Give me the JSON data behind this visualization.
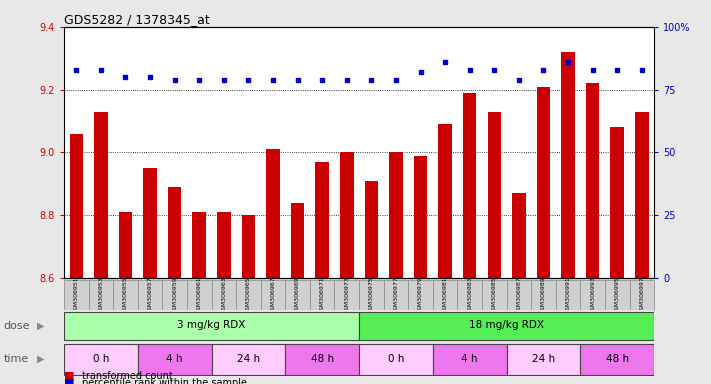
{
  "title": "GDS5282 / 1378345_at",
  "samples": [
    "GSM306951",
    "GSM306953",
    "GSM306955",
    "GSM306957",
    "GSM306959",
    "GSM306961",
    "GSM306963",
    "GSM306965",
    "GSM306967",
    "GSM306969",
    "GSM306971",
    "GSM306973",
    "GSM306975",
    "GSM306977",
    "GSM306979",
    "GSM306981",
    "GSM306983",
    "GSM306985",
    "GSM306987",
    "GSM306989",
    "GSM306991",
    "GSM306993",
    "GSM306995",
    "GSM306997"
  ],
  "bar_values": [
    9.06,
    9.13,
    8.81,
    8.95,
    8.89,
    8.81,
    8.81,
    8.8,
    9.01,
    8.84,
    8.97,
    9.0,
    8.91,
    9.0,
    8.99,
    9.09,
    9.19,
    9.13,
    8.87,
    9.21,
    9.32,
    9.22,
    9.08,
    9.13
  ],
  "percentile_values": [
    83,
    83,
    80,
    80,
    79,
    79,
    79,
    79,
    79,
    79,
    79,
    79,
    79,
    79,
    82,
    86,
    83,
    83,
    79,
    83,
    86,
    83,
    83,
    83
  ],
  "bar_color": "#cc0000",
  "dot_color": "#0000cc",
  "ylim_left": [
    8.6,
    9.4
  ],
  "ylim_right": [
    0,
    100
  ],
  "yticks_left": [
    8.6,
    8.8,
    9.0,
    9.2,
    9.4
  ],
  "yticks_right": [
    0,
    25,
    50,
    75,
    100
  ],
  "ytick_labels_right": [
    "0",
    "25",
    "50",
    "75",
    "100%"
  ],
  "grid_values": [
    8.8,
    9.0,
    9.2
  ],
  "dose_label": "dose",
  "time_label": "time",
  "dose_groups": [
    {
      "label": "3 mg/kg RDX",
      "start": 0,
      "end": 12,
      "color": "#aaffaa"
    },
    {
      "label": "18 mg/kg RDX",
      "start": 12,
      "end": 24,
      "color": "#55ee55"
    }
  ],
  "time_groups": [
    {
      "label": "0 h",
      "start": 0,
      "end": 3,
      "color": "#ffccff"
    },
    {
      "label": "4 h",
      "start": 3,
      "end": 6,
      "color": "#ee77ee"
    },
    {
      "label": "24 h",
      "start": 6,
      "end": 9,
      "color": "#ffccff"
    },
    {
      "label": "48 h",
      "start": 9,
      "end": 12,
      "color": "#ee77ee"
    },
    {
      "label": "0 h",
      "start": 12,
      "end": 15,
      "color": "#ffccff"
    },
    {
      "label": "4 h",
      "start": 15,
      "end": 18,
      "color": "#ee77ee"
    },
    {
      "label": "24 h",
      "start": 18,
      "end": 21,
      "color": "#ffccff"
    },
    {
      "label": "48 h",
      "start": 21,
      "end": 24,
      "color": "#ee77ee"
    }
  ],
  "legend_bar_label": "transformed count",
  "legend_dot_label": "percentile rank within the sample",
  "bg_color": "#e8e8e8",
  "plot_bg_color": "#ffffff",
  "xtick_bg": "#d0d0d0"
}
